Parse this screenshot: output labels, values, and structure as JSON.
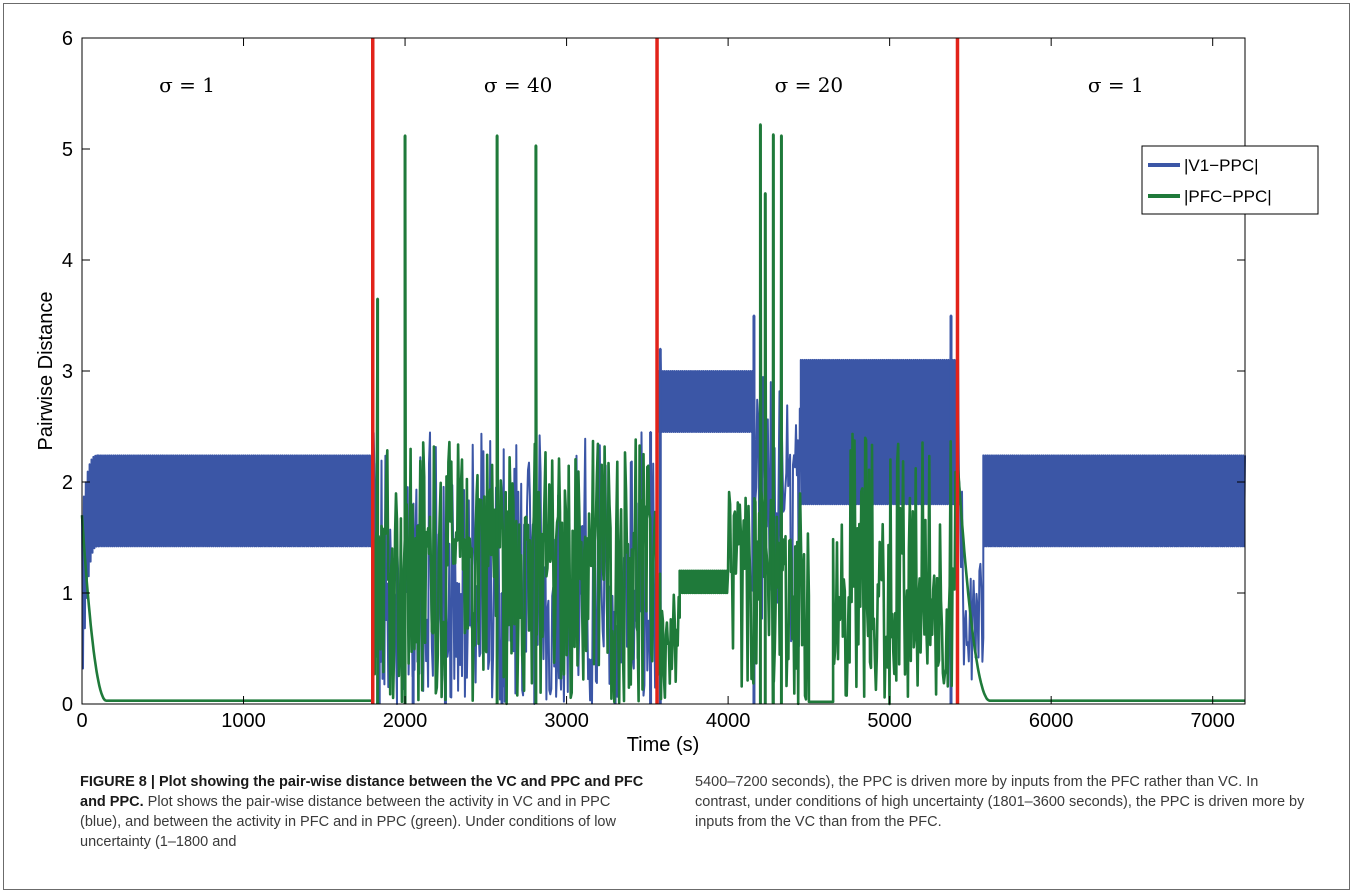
{
  "chart_data": {
    "type": "line",
    "xlabel": "Time (s)",
    "ylabel": "Pairwise Distance",
    "xlim": [
      0,
      7200
    ],
    "ylim": [
      0,
      6
    ],
    "xticks": [
      "0",
      "1000",
      "2000",
      "3000",
      "4000",
      "5000",
      "6000",
      "7000"
    ],
    "yticks": [
      "0",
      "1",
      "2",
      "3",
      "4",
      "5",
      "6"
    ],
    "regions": [
      {
        "label": "σ = 1",
        "x": 650
      },
      {
        "label": "σ = 40",
        "x": 2700
      },
      {
        "label": "σ = 20",
        "x": 4500
      },
      {
        "label": "σ = 1",
        "x": 6400
      }
    ],
    "vlines": [
      1800,
      3560,
      5420
    ],
    "legend_position": "right",
    "series": [
      {
        "name": "|V1−PPC|",
        "color": "#3b56a6",
        "segments": [
          {
            "x0": 0,
            "x1": 100,
            "kind": "rise",
            "low_from": 0.1,
            "high_from": 1.7,
            "low_to": 1.42,
            "high_to": 2.24
          },
          {
            "x0": 100,
            "x1": 1800,
            "kind": "band",
            "low": 1.42,
            "high": 2.24
          },
          {
            "x0": 1800,
            "x1": 3560,
            "kind": "noisy",
            "low": 0,
            "high": 2.45,
            "mid": 0.8
          },
          {
            "x0": 3560,
            "x1": 4150,
            "kind": "band",
            "low": 2.45,
            "high": 3.0
          },
          {
            "x0": 4150,
            "x1": 4450,
            "kind": "noisy",
            "low": 0.5,
            "high": 3.0,
            "mid": 1.8
          },
          {
            "x0": 4450,
            "x1": 5430,
            "kind": "band",
            "low": 1.8,
            "high": 3.1
          },
          {
            "x0": 5430,
            "x1": 5580,
            "kind": "noisy",
            "low": 0.1,
            "high": 2.2,
            "mid": 1.0
          },
          {
            "x0": 5580,
            "x1": 7200,
            "kind": "band",
            "low": 1.42,
            "high": 2.24
          }
        ],
        "points": [
          {
            "x": 1840,
            "y": 1.0
          },
          {
            "x": 1950,
            "y": 0.0
          },
          {
            "x": 2050,
            "y": 1.0
          },
          {
            "x": 2250,
            "y": 1.0
          },
          {
            "x": 2600,
            "y": 1.0
          },
          {
            "x": 2800,
            "y": 0.0
          },
          {
            "x": 3300,
            "y": 0.7
          },
          {
            "x": 3520,
            "y": 2.45
          },
          {
            "x": 3580,
            "y": 3.2
          },
          {
            "x": 4160,
            "y": 3.5
          },
          {
            "x": 5380,
            "y": 3.5
          }
        ]
      },
      {
        "name": "|PFC−PPC|",
        "color": "#1f7a3a",
        "segments": [
          {
            "x0": 0,
            "x1": 150,
            "kind": "fall",
            "from": 1.7,
            "to": 0.03
          },
          {
            "x0": 150,
            "x1": 1800,
            "kind": "flat",
            "value": 0.03
          },
          {
            "x0": 1800,
            "x1": 3560,
            "kind": "noisy",
            "low": 0,
            "high": 2.4,
            "mid": 1.4
          },
          {
            "x0": 3560,
            "x1": 3700,
            "kind": "noisy",
            "low": 0,
            "high": 1.2,
            "mid": 0.5
          },
          {
            "x0": 3700,
            "x1": 4000,
            "kind": "band",
            "low": 1.0,
            "high": 1.2
          },
          {
            "x0": 4000,
            "x1": 4500,
            "kind": "noisy",
            "low": 0,
            "high": 2.0,
            "mid": 1.2
          },
          {
            "x0": 4500,
            "x1": 4650,
            "kind": "flat",
            "value": 0.02
          },
          {
            "x0": 4650,
            "x1": 5420,
            "kind": "noisy",
            "low": 0,
            "high": 2.45,
            "mid": 0.9
          },
          {
            "x0": 5420,
            "x1": 5620,
            "kind": "fall",
            "from": 2.2,
            "to": 0.03
          },
          {
            "x0": 5620,
            "x1": 7200,
            "kind": "flat",
            "value": 0.03
          }
        ],
        "points": [
          {
            "x": 1830,
            "y": 3.65
          },
          {
            "x": 2000,
            "y": 5.12
          },
          {
            "x": 2570,
            "y": 5.12
          },
          {
            "x": 2810,
            "y": 5.03
          },
          {
            "x": 4200,
            "y": 5.22
          },
          {
            "x": 4230,
            "y": 4.6
          },
          {
            "x": 4280,
            "y": 5.13
          },
          {
            "x": 4330,
            "y": 5.12
          }
        ]
      }
    ],
    "vline_color": "#e2231a"
  },
  "caption": {
    "bold": "FIGURE 8 | Plot showing the pair-wise distance between the VC and PPC and PFC and PPC.",
    "col1": " Plot shows the pair-wise distance between the activity in VC and in PPC (blue), and between the activity in PFC and in PPC (green). Under conditions of low uncertainty (1–1800 and",
    "col2": "5400–7200 seconds), the PPC is driven more by inputs from the PFC rather than VC. In contrast, under conditions of high uncertainty (1801–3600 seconds), the PPC is driven more by inputs from the VC than from the PFC."
  }
}
